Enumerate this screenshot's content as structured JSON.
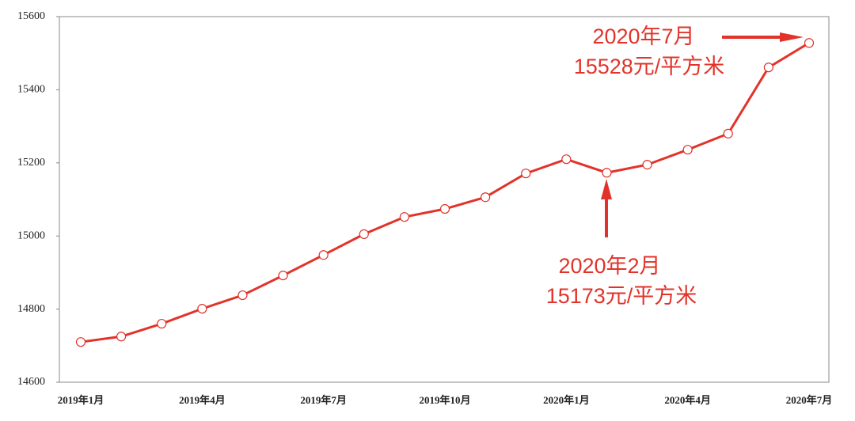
{
  "chart_data": {
    "type": "line",
    "categories": [
      "2019年1月",
      null,
      null,
      "2019年4月",
      null,
      null,
      "2019年7月",
      null,
      null,
      "2019年10月",
      null,
      null,
      "2020年1月",
      null,
      null,
      "2020年4月",
      null,
      null,
      "2020年7月"
    ],
    "values": [
      14710,
      14725,
      14760,
      14801,
      14838,
      14892,
      14948,
      15005,
      15052,
      15074,
      15106,
      15171,
      15210,
      15173,
      15195,
      15236,
      15280,
      15461,
      15528
    ],
    "color": "#e2332a",
    "ylim": [
      14600,
      15600
    ],
    "yticks": [
      14600,
      14800,
      15000,
      15200,
      15400,
      15600
    ],
    "grid": false,
    "annotations": [
      [
        "2020年7月",
        "15528元/平方米"
      ],
      [
        "2020年2月",
        "15173元/平方米"
      ]
    ]
  }
}
